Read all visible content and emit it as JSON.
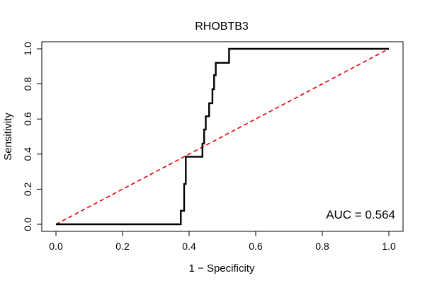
{
  "chart_data": {
    "type": "line",
    "title": "RHOBTB3",
    "xlabel": "1 − Specificity",
    "ylabel": "Sensitivity",
    "xlim": [
      0,
      1
    ],
    "ylim": [
      0,
      1
    ],
    "xticks": [
      0.0,
      0.2,
      0.4,
      0.6,
      0.8,
      1.0
    ],
    "yticks": [
      0.0,
      0.2,
      0.4,
      0.6,
      0.8,
      1.0
    ],
    "xtick_labels": [
      "0.0",
      "0.2",
      "0.4",
      "0.6",
      "0.8",
      "1.0"
    ],
    "ytick_labels": [
      "0.0",
      "0.2",
      "0.4",
      "0.6",
      "0.8",
      "1.0"
    ],
    "grid": false,
    "annotation": "AUC = 0.564",
    "series": [
      {
        "color": "#000000",
        "style": "solid",
        "x": [
          0.0,
          0.375,
          0.375,
          0.385,
          0.385,
          0.39,
          0.39,
          0.44,
          0.44,
          0.445,
          0.445,
          0.45,
          0.45,
          0.46,
          0.46,
          0.47,
          0.47,
          0.475,
          0.475,
          0.48,
          0.48,
          0.485,
          0.485,
          0.52,
          0.52,
          1.0
        ],
        "y": [
          0.0,
          0.0,
          0.077,
          0.077,
          0.23,
          0.23,
          0.385,
          0.385,
          0.46,
          0.46,
          0.54,
          0.54,
          0.615,
          0.615,
          0.69,
          0.69,
          0.77,
          0.77,
          0.85,
          0.85,
          0.92,
          0.92,
          0.92,
          0.92,
          1.0,
          1.0
        ]
      },
      {
        "color": "#dd0000",
        "style": "dashed",
        "x": [
          0.0,
          1.0
        ],
        "y": [
          0.0,
          1.0
        ]
      }
    ]
  }
}
